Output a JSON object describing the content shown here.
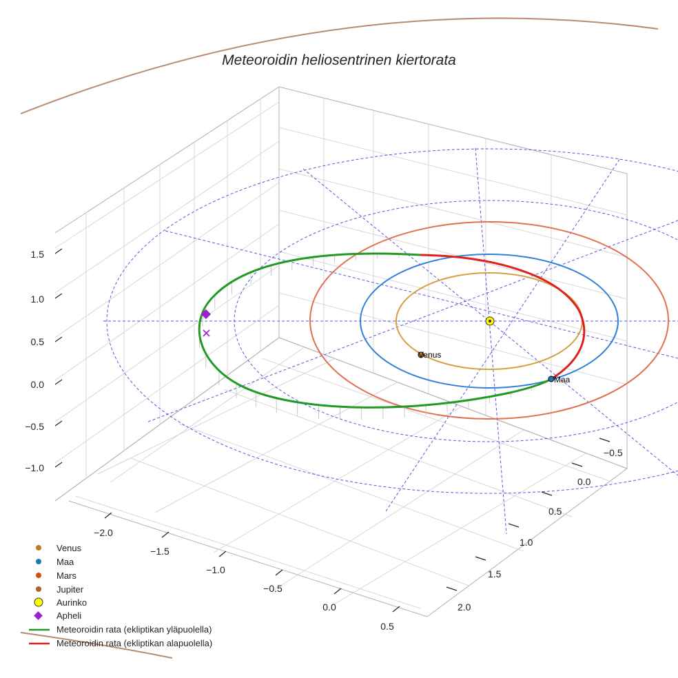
{
  "chart_data": {
    "type": "line",
    "title": "Meteoroidin heliosentrinen kiertorata",
    "axes": {
      "x": {
        "ticks": [
          -2.0,
          -1.5,
          -1.0,
          -0.5,
          0.0,
          0.5
        ],
        "labels": [
          "−2.0",
          "−1.5",
          "−1.0",
          "−0.5",
          "0.0",
          "0.5"
        ]
      },
      "y": {
        "ticks": [
          -0.5,
          0.0,
          0.5,
          1.0,
          1.5,
          2.0
        ],
        "labels": [
          "−0.5",
          "0.0",
          "0.5",
          "1.0",
          "1.5",
          "2.0"
        ]
      },
      "z": {
        "ticks": [
          1.5,
          1.0,
          0.5,
          0.0,
          -0.5,
          -1.0
        ],
        "labels": [
          "1.5",
          "1.0",
          "0.5",
          "0.0",
          "−0.5",
          "−1.0"
        ]
      }
    },
    "planets": [
      {
        "name": "Venus",
        "label": "Venus",
        "color": "#d4a040",
        "marker": "#c07a20",
        "radius_au": 0.72
      },
      {
        "name": "Maa",
        "label": "Maa",
        "color": "#2f80d8",
        "marker": "#1f77b4",
        "radius_au": 1.0
      },
      {
        "name": "Mars",
        "label": "",
        "color": "#e07050",
        "marker": "#d05010",
        "radius_au": 1.52
      },
      {
        "name": "Jupiter",
        "label": "",
        "color": "#b88a70",
        "marker": "#b06030",
        "radius_au": 5.2
      }
    ],
    "sun": {
      "name": "Aurinko",
      "color": "#ffff00"
    },
    "aphelion": {
      "name": "Apheli",
      "color": "#9a20d0"
    },
    "meteoroid_orbit": {
      "above": {
        "name": "Meteoroidin rata (ekliptikan yläpuolella)",
        "color": "#229922"
      },
      "below": {
        "name": "Meteoroidin rata (ekliptikan alapuolella)",
        "color": "#e02020"
      }
    },
    "legend": {
      "position": "bottom-left",
      "entries": [
        "Venus",
        "Maa",
        "Mars",
        "Jupiter",
        "Aurinko",
        "Apheli",
        "Meteoroidin rata (ekliptikan yläpuolella)",
        "Meteoroidin rata (ekliptikan alapuolella)"
      ]
    },
    "grid": true
  }
}
